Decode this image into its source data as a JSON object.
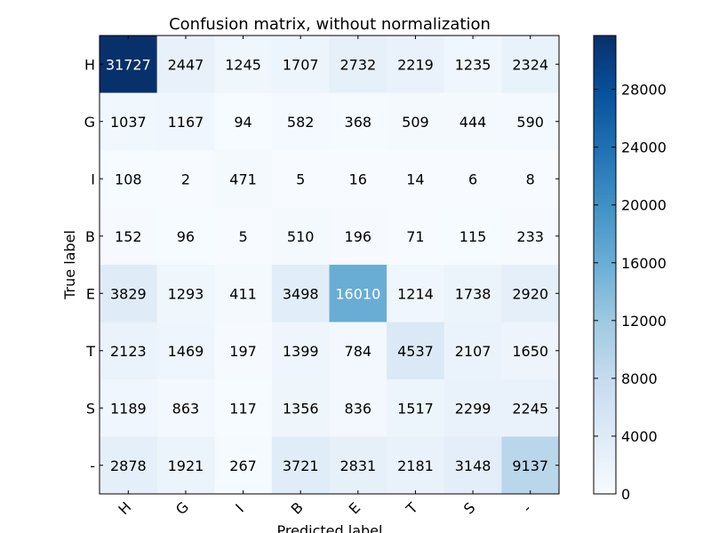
{
  "chart_data": {
    "type": "heatmap",
    "title": "Confusion matrix, without normalization",
    "xlabel": "Predicted label",
    "ylabel": "True label",
    "x_categories": [
      "H",
      "G",
      "I",
      "B",
      "E",
      "T",
      "S",
      "-"
    ],
    "y_categories": [
      "H",
      "G",
      "I",
      "B",
      "E",
      "T",
      "S",
      "-"
    ],
    "values": [
      [
        31727,
        2447,
        1245,
        1707,
        2732,
        2219,
        1235,
        2324
      ],
      [
        1037,
        1167,
        94,
        582,
        368,
        509,
        444,
        590
      ],
      [
        108,
        2,
        471,
        5,
        16,
        14,
        6,
        8
      ],
      [
        152,
        96,
        5,
        510,
        196,
        71,
        115,
        233
      ],
      [
        3829,
        1293,
        411,
        3498,
        16010,
        1214,
        1738,
        2920
      ],
      [
        2123,
        1469,
        197,
        1399,
        784,
        4537,
        2107,
        1650
      ],
      [
        1189,
        863,
        117,
        1356,
        836,
        1517,
        2299,
        2245
      ],
      [
        2878,
        1921,
        267,
        3721,
        2831,
        2181,
        3148,
        9137
      ]
    ],
    "colorbar": {
      "ticks": [
        "0",
        "4000",
        "8000",
        "12000",
        "16000",
        "20000",
        "24000",
        "28000"
      ],
      "tick_values": [
        0,
        4000,
        8000,
        12000,
        16000,
        20000,
        24000,
        28000
      ],
      "min": 0,
      "max": 31727
    },
    "colormap": "Blues",
    "grid": false
  }
}
